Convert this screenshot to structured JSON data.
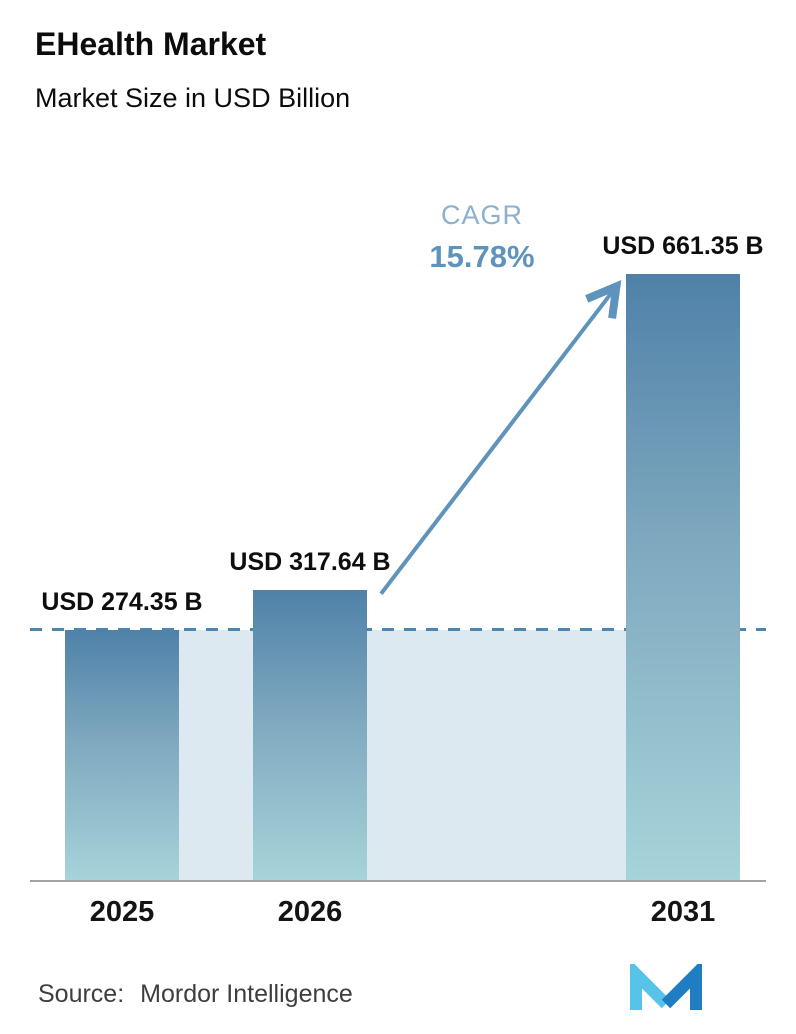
{
  "chart_data": {
    "type": "bar",
    "title": "EHealth Market",
    "subtitle": "Market Size in USD Billion",
    "unit": "USD Billion",
    "categories": [
      "2025",
      "2026",
      "2031"
    ],
    "values": [
      274.35,
      317.64,
      661.35
    ],
    "value_labels": [
      "USD 274.35 B",
      "USD 317.64 B",
      "USD 661.35 B"
    ],
    "cagr_label": "CAGR",
    "cagr_value": "15.78%",
    "ylim": [
      0,
      700
    ],
    "grid": false,
    "legend": "none",
    "annotations": [
      {
        "type": "dashed_reference_line",
        "value": 274.35
      },
      {
        "type": "shaded_reference_area",
        "from_value": 0,
        "to_value": 274.35,
        "between_categories": [
          "2025",
          "2031"
        ]
      },
      {
        "type": "arrow",
        "from_category": "2026",
        "to_category": "2031",
        "label": "CAGR 15.78%"
      }
    ]
  },
  "footer": {
    "source_label": "Source:",
    "source_value": "Mordor Intelligence",
    "logo": "mordor-intelligence-logo"
  },
  "colors": {
    "bar_gradient_top": "#4f81a8",
    "bar_gradient_bottom": "#a7d4da",
    "reference_area_fill": "#dde9f1",
    "reference_line": "#4c86ad",
    "arrow": "#5e93bb",
    "cagr_label_text": "#8cb0cd",
    "cagr_value_text": "#5e93bb",
    "axis_line": "#a3a3a3",
    "text": "#0c0c0c",
    "logo_light_blue": "#58c3e9",
    "logo_dark_blue": "#1f7dc2"
  }
}
